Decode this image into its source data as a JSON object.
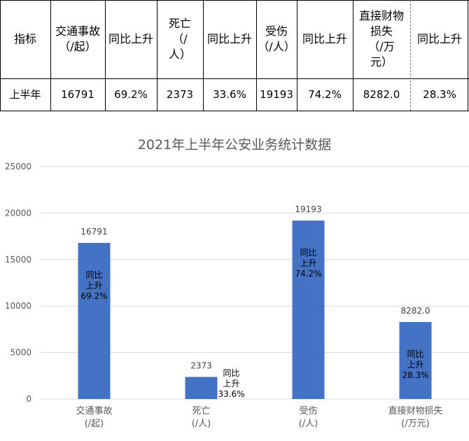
{
  "table": {
    "headers": [
      "指标",
      "交通事故\n（/起）",
      "同比上升",
      "死亡\n（/\n人）",
      "同比上升",
      "受伤\n（/人）",
      "同比上升",
      "直接财物\n损失\n（/万\n元）",
      "同比上升"
    ],
    "row": [
      "上半年",
      "16791",
      "69.2%",
      "2373",
      "33.6%",
      "19193",
      "74.2%",
      "8282.0",
      "28.3%"
    ]
  },
  "chart_data": {
    "type": "bar",
    "title": "2021年上半年公安业务统计数据",
    "categories": [
      "交通事故\n(/起)",
      "死亡\n(/人)",
      "受伤\n(/人)",
      "直接财物损失\n(/万元)"
    ],
    "values": [
      16791,
      2373,
      19193,
      8282.0
    ],
    "value_labels": [
      "16791",
      "2373",
      "19193",
      "8282.0"
    ],
    "annotations": [
      "同比\n上升\n69.2%",
      "同比\n上升\n33.6%",
      "同比\n上升\n74.2%",
      "同比\n上升\n28.3%"
    ],
    "ylim": [
      0,
      25000
    ],
    "yticks": [
      0,
      5000,
      10000,
      15000,
      20000,
      25000
    ],
    "xlabel": "",
    "ylabel": "",
    "grid": true,
    "legend": "none",
    "colors": {
      "bar": "#4472C4",
      "grid": "#D9D9D9",
      "axis_text": "#595959",
      "title": "#595959"
    }
  }
}
